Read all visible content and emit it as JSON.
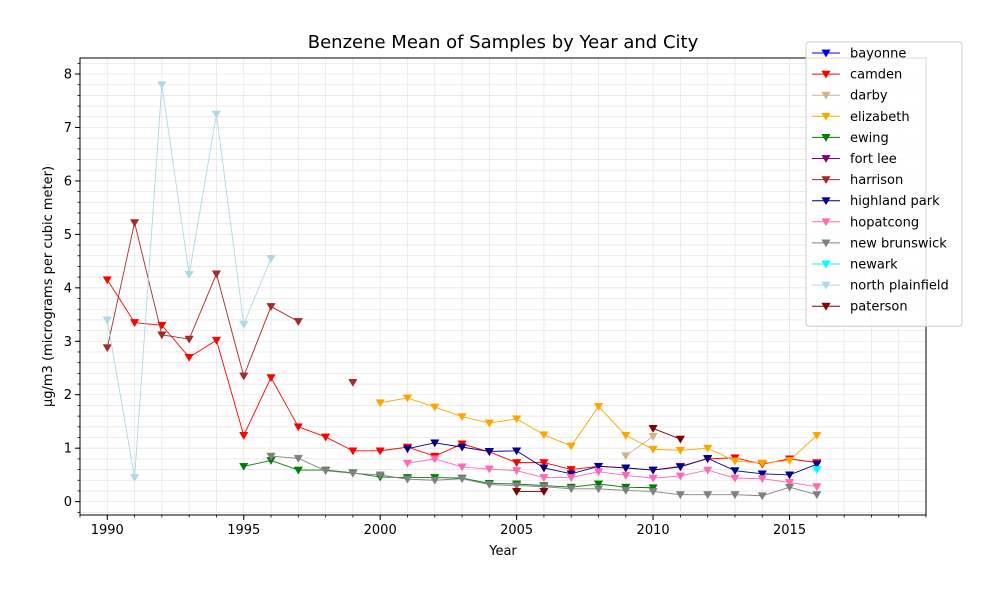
{
  "chart_data": {
    "type": "line",
    "title": "Benzene Mean of Samples by Year and City",
    "xlabel": "Year",
    "ylabel": "µg/m3 (micrograms per cubic meter)",
    "xlim": [
      1989,
      2020
    ],
    "ylim": [
      -0.25,
      8.3
    ],
    "xticks": [
      1990,
      1995,
      2000,
      2005,
      2010,
      2015
    ],
    "yticks": [
      0,
      1,
      2,
      3,
      4,
      5,
      6,
      7,
      8
    ],
    "grid": true,
    "legend_position": "top-right",
    "marker": "triangle-down",
    "series": [
      {
        "name": "bayonne",
        "color": "#0000ff",
        "points": [
          [
            2016,
            0.72
          ]
        ]
      },
      {
        "name": "camden",
        "color": "#ff0000",
        "points": [
          [
            1990,
            4.15
          ],
          [
            1991,
            3.35
          ],
          [
            1992,
            3.3
          ],
          [
            1993,
            2.7
          ],
          [
            1994,
            3.02
          ],
          [
            1995,
            1.24
          ],
          [
            1996,
            2.32
          ],
          [
            1997,
            1.4
          ],
          [
            1998,
            1.21
          ],
          [
            1999,
            0.95
          ],
          [
            2000,
            0.95
          ],
          [
            2001,
            1.02
          ],
          [
            2002,
            0.85
          ],
          [
            2003,
            1.08
          ],
          [
            2004,
            0.93
          ],
          [
            2005,
            0.73
          ],
          [
            2006,
            0.73
          ],
          [
            2007,
            0.6
          ],
          [
            2008,
            0.66
          ],
          [
            2009,
            0.63
          ],
          [
            2010,
            0.59
          ],
          [
            2011,
            0.66
          ],
          [
            2012,
            0.8
          ],
          [
            2013,
            0.82
          ],
          [
            2014,
            0.7
          ],
          [
            2015,
            0.8
          ],
          [
            2016,
            0.73
          ]
        ]
      },
      {
        "name": "darby",
        "color": "#d2b48c",
        "points": [
          [
            2009,
            0.86
          ],
          [
            2010,
            1.22
          ]
        ]
      },
      {
        "name": "elizabeth",
        "color": "#ffa500",
        "points": [
          [
            2000,
            1.85
          ],
          [
            2001,
            1.94
          ],
          [
            2002,
            1.77
          ],
          [
            2003,
            1.59
          ],
          [
            2004,
            1.47
          ],
          [
            2005,
            1.55
          ],
          [
            2006,
            1.25
          ],
          [
            2007,
            1.04
          ],
          [
            2008,
            1.78
          ],
          [
            2009,
            1.24
          ],
          [
            2010,
            0.98
          ],
          [
            2011,
            0.96
          ],
          [
            2012,
            1.0
          ],
          [
            2013,
            0.76
          ],
          [
            2014,
            0.72
          ],
          [
            2015,
            0.77
          ],
          [
            2016,
            1.24
          ]
        ]
      },
      {
        "name": "ewing",
        "color": "#008000",
        "points": [
          [
            1995,
            0.66
          ],
          [
            1996,
            0.77
          ],
          [
            1997,
            0.59
          ],
          [
            1998,
            0.59
          ],
          [
            1999,
            0.54
          ],
          [
            2000,
            0.46
          ],
          [
            2001,
            0.45
          ],
          [
            2002,
            0.45
          ],
          [
            2003,
            0.44
          ],
          [
            2004,
            0.34
          ],
          [
            2005,
            0.33
          ],
          [
            2006,
            0.3
          ],
          [
            2007,
            0.27
          ],
          [
            2008,
            0.33
          ],
          [
            2009,
            0.27
          ],
          [
            2010,
            0.26
          ]
        ]
      },
      {
        "name": "fort lee",
        "color": "#800080",
        "points": []
      },
      {
        "name": "harrison",
        "color": "#a52a2a",
        "points": [
          [
            1990,
            2.88
          ],
          [
            1991,
            5.22
          ],
          [
            1992,
            3.12
          ],
          [
            1993,
            3.04
          ],
          [
            1994,
            4.26
          ],
          [
            1995,
            2.35
          ],
          [
            1996,
            3.65
          ],
          [
            1997,
            3.37
          ],
          [
            1999,
            2.23
          ]
        ]
      },
      {
        "name": "highland park",
        "color": "#00008b",
        "points": [
          [
            2001,
            0.99
          ],
          [
            2002,
            1.1
          ],
          [
            2003,
            1.02
          ],
          [
            2004,
            0.94
          ],
          [
            2005,
            0.95
          ],
          [
            2006,
            0.63
          ],
          [
            2007,
            0.52
          ],
          [
            2008,
            0.66
          ],
          [
            2009,
            0.63
          ],
          [
            2010,
            0.59
          ],
          [
            2011,
            0.65
          ],
          [
            2012,
            0.81
          ],
          [
            2013,
            0.58
          ],
          [
            2014,
            0.52
          ],
          [
            2015,
            0.5
          ],
          [
            2016,
            0.7
          ]
        ]
      },
      {
        "name": "hopatcong",
        "color": "#ff69b4",
        "points": [
          [
            2001,
            0.72
          ],
          [
            2002,
            0.8
          ],
          [
            2003,
            0.65
          ],
          [
            2004,
            0.61
          ],
          [
            2005,
            0.58
          ],
          [
            2006,
            0.45
          ],
          [
            2007,
            0.45
          ],
          [
            2008,
            0.56
          ],
          [
            2009,
            0.49
          ],
          [
            2010,
            0.44
          ],
          [
            2011,
            0.48
          ],
          [
            2012,
            0.59
          ],
          [
            2013,
            0.44
          ],
          [
            2014,
            0.43
          ],
          [
            2015,
            0.36
          ],
          [
            2016,
            0.28
          ]
        ]
      },
      {
        "name": "new brunswick",
        "color": "#808080",
        "points": [
          [
            1996,
            0.85
          ],
          [
            1997,
            0.81
          ],
          [
            1998,
            0.58
          ],
          [
            1999,
            0.53
          ],
          [
            2000,
            0.5
          ],
          [
            2001,
            0.42
          ],
          [
            2002,
            0.4
          ],
          [
            2003,
            0.43
          ],
          [
            2004,
            0.32
          ],
          [
            2005,
            0.3
          ],
          [
            2006,
            0.28
          ],
          [
            2007,
            0.24
          ],
          [
            2008,
            0.24
          ],
          [
            2009,
            0.21
          ],
          [
            2010,
            0.19
          ],
          [
            2011,
            0.13
          ],
          [
            2012,
            0.13
          ],
          [
            2013,
            0.13
          ],
          [
            2014,
            0.11
          ],
          [
            2015,
            0.27
          ],
          [
            2016,
            0.13
          ]
        ]
      },
      {
        "name": "newark",
        "color": "#00ffff",
        "points": [
          [
            2016,
            0.6
          ]
        ]
      },
      {
        "name": "north plainfield",
        "color": "#add8e6",
        "points": [
          [
            1990,
            3.4
          ],
          [
            1991,
            0.45
          ],
          [
            1992,
            7.8
          ],
          [
            1993,
            4.25
          ],
          [
            1994,
            7.25
          ],
          [
            1995,
            3.32
          ],
          [
            1996,
            4.55
          ]
        ]
      },
      {
        "name": "paterson",
        "color": "#800000",
        "points": [
          [
            2005,
            0.19
          ],
          [
            2006,
            0.19
          ],
          [
            2010,
            1.37
          ],
          [
            2011,
            1.17
          ]
        ]
      }
    ]
  }
}
